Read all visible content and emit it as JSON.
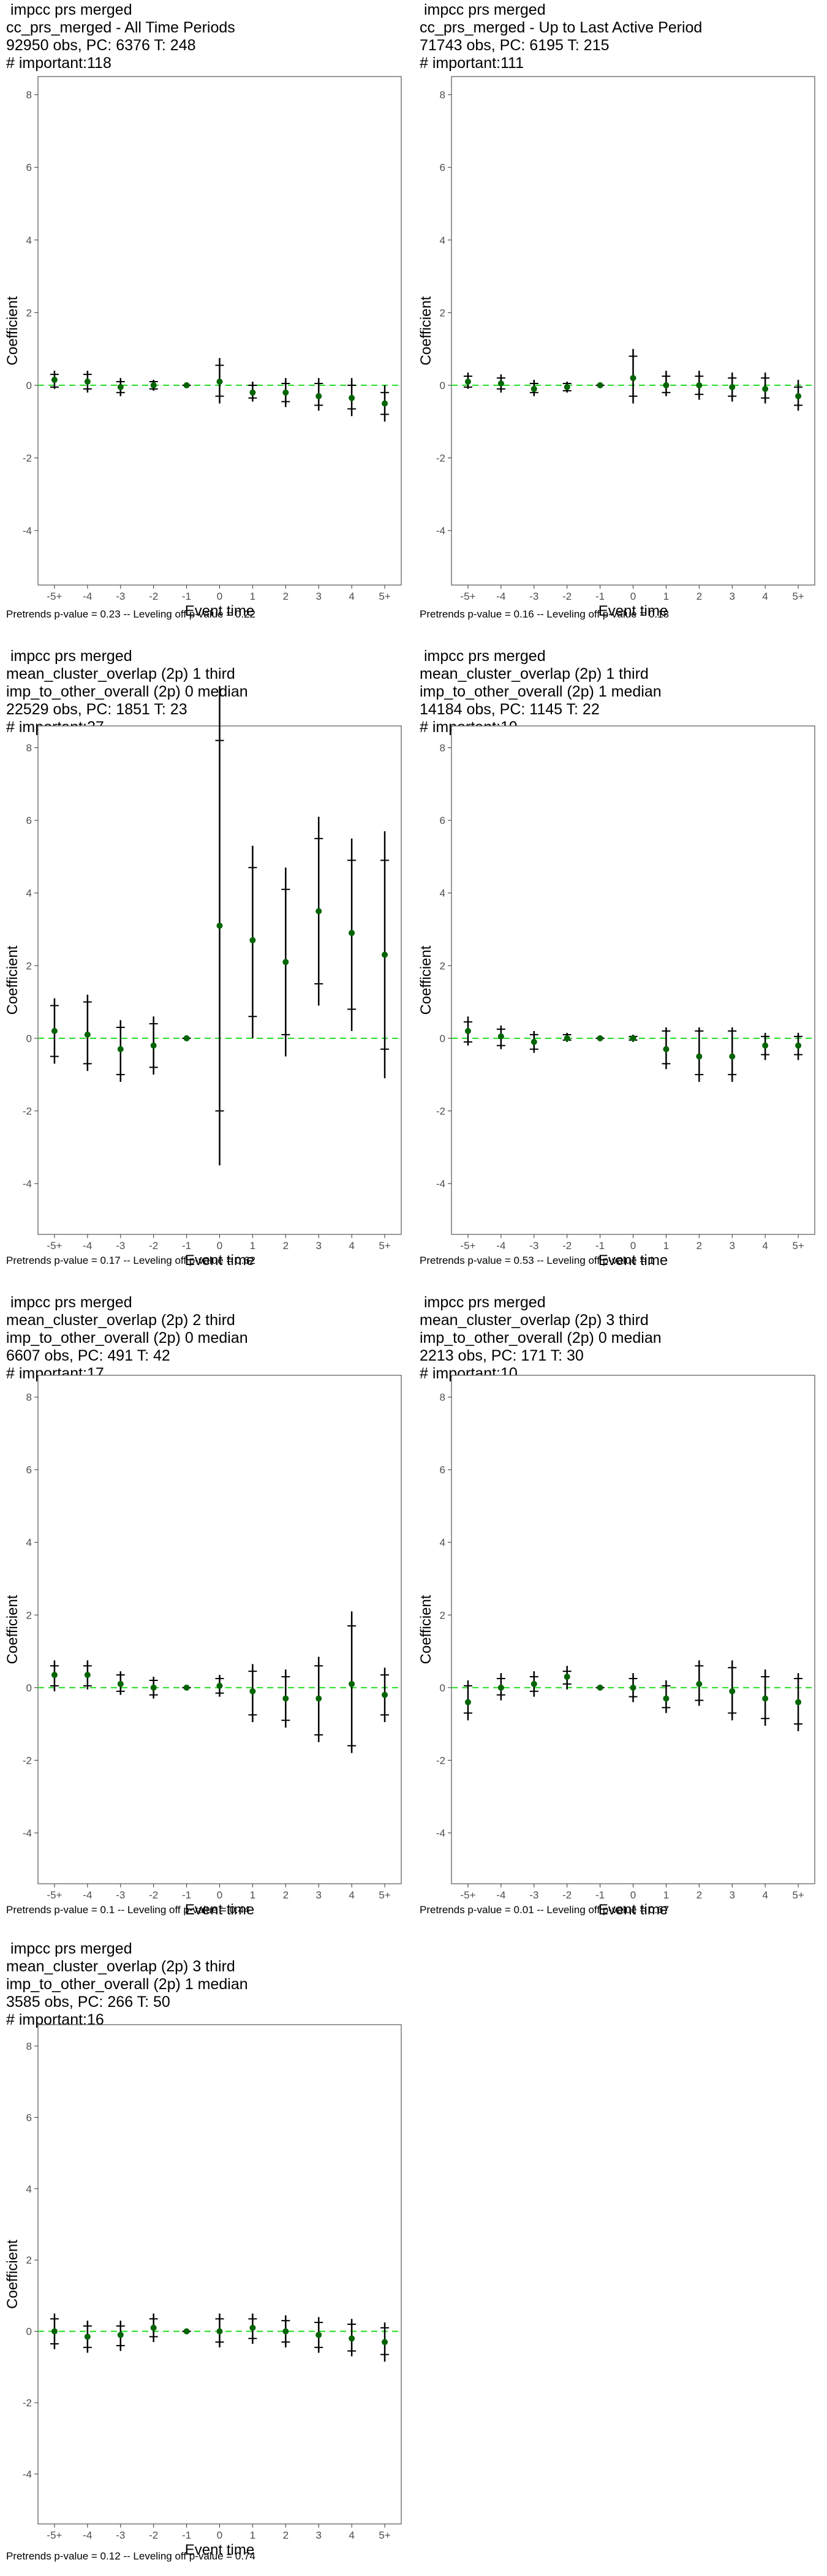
{
  "chart_data": [
    {
      "type": "scatter",
      "title_lines": [
        " impcc prs merged",
        "cc_prs_merged - All Time Periods",
        "92950 obs, PC: 6376 T: 248",
        "# important:118"
      ],
      "xlabel": "Event time",
      "ylabel": "Coefficient",
      "categories": [
        "-5+",
        "-4",
        "-3",
        "-2",
        "-1",
        "0",
        "1",
        "2",
        "3",
        "4",
        "5+"
      ],
      "ylim": [
        -5.5,
        8.5
      ],
      "yticks": [
        -4,
        -2,
        0,
        2,
        4,
        6,
        8
      ],
      "grid": false,
      "reference_line": 0,
      "points": [
        0.15,
        0.1,
        -0.05,
        0.0,
        0.0,
        0.1,
        -0.2,
        -0.2,
        -0.3,
        -0.35,
        -0.5
      ],
      "ci_inner": [
        [
          -0.05,
          0.3
        ],
        [
          -0.1,
          0.3
        ],
        [
          -0.2,
          0.1
        ],
        [
          -0.1,
          0.1
        ],
        [
          0,
          0
        ],
        [
          -0.3,
          0.55
        ],
        [
          -0.35,
          0.0
        ],
        [
          -0.45,
          0.05
        ],
        [
          -0.55,
          0.05
        ],
        [
          -0.65,
          0.0
        ],
        [
          -0.8,
          -0.2
        ]
      ],
      "ci_outer": [
        [
          -0.1,
          0.4
        ],
        [
          -0.2,
          0.4
        ],
        [
          -0.3,
          0.2
        ],
        [
          -0.15,
          0.15
        ],
        [
          0,
          0
        ],
        [
          -0.5,
          0.75
        ],
        [
          -0.45,
          0.1
        ],
        [
          -0.6,
          0.2
        ],
        [
          -0.7,
          0.2
        ],
        [
          -0.85,
          0.2
        ],
        [
          -1.0,
          0.0
        ]
      ],
      "footer": "Pretrends p-value = 0.23 -- Leveling off p-value = 0.22"
    },
    {
      "type": "scatter",
      "title_lines": [
        " impcc prs merged",
        "cc_prs_merged - Up to Last Active Period",
        "71743 obs, PC: 6195 T: 215",
        "# important:111"
      ],
      "xlabel": "Event time",
      "ylabel": "Coefficient",
      "categories": [
        "-5+",
        "-4",
        "-3",
        "-2",
        "-1",
        "0",
        "1",
        "2",
        "3",
        "4",
        "5+"
      ],
      "ylim": [
        -5.5,
        8.5
      ],
      "yticks": [
        -4,
        -2,
        0,
        2,
        4,
        6,
        8
      ],
      "grid": false,
      "reference_line": 0,
      "points": [
        0.1,
        0.05,
        -0.1,
        -0.05,
        0.0,
        0.2,
        0.0,
        0.0,
        -0.05,
        -0.1,
        -0.3
      ],
      "ci_inner": [
        [
          -0.05,
          0.25
        ],
        [
          -0.1,
          0.2
        ],
        [
          -0.2,
          0.05
        ],
        [
          -0.15,
          0.05
        ],
        [
          0,
          0
        ],
        [
          -0.3,
          0.8
        ],
        [
          -0.2,
          0.25
        ],
        [
          -0.25,
          0.25
        ],
        [
          -0.3,
          0.2
        ],
        [
          -0.35,
          0.2
        ],
        [
          -0.55,
          -0.05
        ]
      ],
      "ci_outer": [
        [
          -0.1,
          0.35
        ],
        [
          -0.2,
          0.3
        ],
        [
          -0.3,
          0.15
        ],
        [
          -0.2,
          0.1
        ],
        [
          0,
          0
        ],
        [
          -0.5,
          1.0
        ],
        [
          -0.3,
          0.4
        ],
        [
          -0.4,
          0.4
        ],
        [
          -0.45,
          0.35
        ],
        [
          -0.5,
          0.35
        ],
        [
          -0.7,
          0.15
        ]
      ],
      "footer": "Pretrends p-value = 0.16 -- Leveling off p-value = 0.18"
    },
    {
      "type": "scatter",
      "title_lines": [
        " impcc prs merged",
        "mean_cluster_overlap (2p) 1 third",
        "imp_to_other_overall (2p) 0 median",
        "22529 obs, PC: 1851 T: 23",
        "# important:27"
      ],
      "xlabel": "Event time",
      "ylabel": "Coefficient",
      "categories": [
        "-5+",
        "-4",
        "-3",
        "-2",
        "-1",
        "0",
        "1",
        "2",
        "3",
        "4",
        "5+"
      ],
      "ylim": [
        -5.4,
        8.6
      ],
      "yticks": [
        -4,
        -2,
        0,
        2,
        4,
        6,
        8
      ],
      "grid": false,
      "reference_line": 0,
      "points": [
        0.2,
        0.1,
        -0.3,
        -0.2,
        0.0,
        3.1,
        2.7,
        2.1,
        3.5,
        2.9,
        2.3
      ],
      "ci_inner": [
        [
          -0.5,
          0.9
        ],
        [
          -0.7,
          1.0
        ],
        [
          -1.0,
          0.3
        ],
        [
          -0.8,
          0.4
        ],
        [
          0,
          0
        ],
        [
          -2.0,
          8.2
        ],
        [
          0.6,
          4.7
        ],
        [
          0.1,
          4.1
        ],
        [
          1.5,
          5.5
        ],
        [
          0.8,
          4.9
        ],
        [
          -0.3,
          4.9
        ]
      ],
      "ci_outer": [
        [
          -0.7,
          1.1
        ],
        [
          -0.9,
          1.2
        ],
        [
          -1.2,
          0.5
        ],
        [
          -1.0,
          0.6
        ],
        [
          0,
          0
        ],
        [
          -3.5,
          9.7
        ],
        [
          0.0,
          5.3
        ],
        [
          -0.5,
          4.7
        ],
        [
          0.9,
          6.1
        ],
        [
          0.2,
          5.5
        ],
        [
          -1.1,
          5.7
        ]
      ],
      "footer": "Pretrends p-value = 0.17 -- Leveling off p-value = 0.62"
    },
    {
      "type": "scatter",
      "title_lines": [
        " impcc prs merged",
        "mean_cluster_overlap (2p) 1 third",
        "imp_to_other_overall (2p) 1 median",
        "14184 obs, PC: 1145 T: 22",
        "# important:19"
      ],
      "xlabel": "Event time",
      "ylabel": "Coefficient",
      "categories": [
        "-5+",
        "-4",
        "-3",
        "-2",
        "-1",
        "0",
        "1",
        "2",
        "3",
        "4",
        "5+"
      ],
      "ylim": [
        -5.4,
        8.6
      ],
      "yticks": [
        -4,
        -2,
        0,
        2,
        4,
        6,
        8
      ],
      "grid": false,
      "reference_line": 0,
      "points": [
        0.2,
        0.05,
        -0.1,
        0.0,
        0.0,
        0.0,
        -0.3,
        -0.5,
        -0.5,
        -0.2,
        -0.2
      ],
      "ci_inner": [
        [
          -0.1,
          0.45
        ],
        [
          -0.2,
          0.25
        ],
        [
          -0.3,
          0.1
        ],
        [
          -0.05,
          0.1
        ],
        [
          0,
          0
        ],
        [
          -0.05,
          0.05
        ],
        [
          -0.7,
          0.2
        ],
        [
          -1.0,
          0.2
        ],
        [
          -1.0,
          0.2
        ],
        [
          -0.45,
          0.05
        ],
        [
          -0.45,
          0.05
        ]
      ],
      "ci_outer": [
        [
          -0.2,
          0.6
        ],
        [
          -0.3,
          0.35
        ],
        [
          -0.4,
          0.2
        ],
        [
          -0.1,
          0.15
        ],
        [
          0,
          0
        ],
        [
          -0.1,
          0.1
        ],
        [
          -0.85,
          0.3
        ],
        [
          -1.2,
          0.3
        ],
        [
          -1.2,
          0.3
        ],
        [
          -0.6,
          0.15
        ],
        [
          -0.6,
          0.15
        ]
      ],
      "footer": "Pretrends p-value = 0.53 -- Leveling off p-value = 1"
    },
    {
      "type": "scatter",
      "title_lines": [
        " impcc prs merged",
        "mean_cluster_overlap (2p) 2 third",
        "imp_to_other_overall (2p) 0 median",
        "6607 obs, PC: 491 T: 42",
        "# important:17"
      ],
      "xlabel": "Event time",
      "ylabel": "Coefficient",
      "categories": [
        "-5+",
        "-4",
        "-3",
        "-2",
        "-1",
        "0",
        "1",
        "2",
        "3",
        "4",
        "5+"
      ],
      "ylim": [
        -5.4,
        8.6
      ],
      "yticks": [
        -4,
        -2,
        0,
        2,
        4,
        6,
        8
      ],
      "grid": false,
      "reference_line": 0,
      "points": [
        0.35,
        0.35,
        0.1,
        0.0,
        0.0,
        0.05,
        -0.1,
        -0.3,
        -0.3,
        0.1,
        -0.2
      ],
      "ci_inner": [
        [
          0.05,
          0.6
        ],
        [
          0.05,
          0.6
        ],
        [
          -0.1,
          0.35
        ],
        [
          -0.2,
          0.2
        ],
        [
          0,
          0
        ],
        [
          -0.15,
          0.25
        ],
        [
          -0.75,
          0.45
        ],
        [
          -0.9,
          0.3
        ],
        [
          -1.3,
          0.6
        ],
        [
          -1.6,
          1.7
        ],
        [
          -0.75,
          0.35
        ]
      ],
      "ci_outer": [
        [
          -0.1,
          0.75
        ],
        [
          -0.05,
          0.75
        ],
        [
          -0.2,
          0.45
        ],
        [
          -0.3,
          0.3
        ],
        [
          0,
          0
        ],
        [
          -0.25,
          0.35
        ],
        [
          -0.95,
          0.65
        ],
        [
          -1.1,
          0.5
        ],
        [
          -1.5,
          0.85
        ],
        [
          -1.8,
          2.1
        ],
        [
          -0.95,
          0.55
        ]
      ],
      "footer": "Pretrends p-value = 0.1 -- Leveling off p-value = 0.44"
    },
    {
      "type": "scatter",
      "title_lines": [
        " impcc prs merged",
        "mean_cluster_overlap (2p) 3 third",
        "imp_to_other_overall (2p) 0 median",
        "2213 obs, PC: 171 T: 30",
        "# important:10"
      ],
      "xlabel": "Event time",
      "ylabel": "Coefficient",
      "categories": [
        "-5+",
        "-4",
        "-3",
        "-2",
        "-1",
        "0",
        "1",
        "2",
        "3",
        "4",
        "5+"
      ],
      "ylim": [
        -5.4,
        8.6
      ],
      "yticks": [
        -4,
        -2,
        0,
        2,
        4,
        6,
        8
      ],
      "grid": false,
      "reference_line": 0,
      "points": [
        -0.4,
        0.0,
        0.1,
        0.3,
        0.0,
        0.0,
        -0.3,
        0.1,
        -0.1,
        -0.3,
        -0.4
      ],
      "ci_inner": [
        [
          -0.7,
          0.05
        ],
        [
          -0.2,
          0.25
        ],
        [
          -0.1,
          0.3
        ],
        [
          0.1,
          0.45
        ],
        [
          0,
          0
        ],
        [
          -0.25,
          0.25
        ],
        [
          -0.55,
          0.05
        ],
        [
          -0.35,
          0.6
        ],
        [
          -0.7,
          0.55
        ],
        [
          -0.85,
          0.3
        ],
        [
          -1.0,
          0.25
        ]
      ],
      "ci_outer": [
        [
          -0.9,
          0.2
        ],
        [
          -0.35,
          0.4
        ],
        [
          -0.25,
          0.45
        ],
        [
          -0.05,
          0.6
        ],
        [
          0,
          0
        ],
        [
          -0.4,
          0.4
        ],
        [
          -0.7,
          0.2
        ],
        [
          -0.5,
          0.75
        ],
        [
          -0.9,
          0.75
        ],
        [
          -1.05,
          0.5
        ],
        [
          -1.2,
          0.4
        ]
      ],
      "footer": "Pretrends p-value = 0.01 -- Leveling off p-value = 0.67"
    },
    {
      "type": "scatter",
      "title_lines": [
        " impcc prs merged",
        "mean_cluster_overlap (2p) 3 third",
        "imp_to_other_overall (2p) 1 median",
        "3585 obs, PC: 266 T: 50",
        "# important:16"
      ],
      "xlabel": "Event time",
      "ylabel": "Coefficient",
      "categories": [
        "-5+",
        "-4",
        "-3",
        "-2",
        "-1",
        "0",
        "1",
        "2",
        "3",
        "4",
        "5+"
      ],
      "ylim": [
        -5.4,
        8.6
      ],
      "yticks": [
        -4,
        -2,
        0,
        2,
        4,
        6,
        8
      ],
      "grid": false,
      "reference_line": 0,
      "points": [
        0.0,
        -0.15,
        -0.1,
        0.1,
        0.0,
        0.0,
        0.1,
        0.0,
        -0.1,
        -0.2,
        -0.3
      ],
      "ci_inner": [
        [
          -0.35,
          0.35
        ],
        [
          -0.45,
          0.15
        ],
        [
          -0.4,
          0.15
        ],
        [
          -0.15,
          0.35
        ],
        [
          0,
          0
        ],
        [
          -0.3,
          0.35
        ],
        [
          -0.2,
          0.35
        ],
        [
          -0.3,
          0.3
        ],
        [
          -0.45,
          0.25
        ],
        [
          -0.55,
          0.2
        ],
        [
          -0.65,
          0.1
        ]
      ],
      "ci_outer": [
        [
          -0.5,
          0.5
        ],
        [
          -0.6,
          0.3
        ],
        [
          -0.55,
          0.3
        ],
        [
          -0.3,
          0.5
        ],
        [
          0,
          0
        ],
        [
          -0.45,
          0.5
        ],
        [
          -0.35,
          0.5
        ],
        [
          -0.45,
          0.45
        ],
        [
          -0.6,
          0.4
        ],
        [
          -0.7,
          0.35
        ],
        [
          -0.85,
          0.25
        ]
      ],
      "footer": "Pretrends p-value = 0.12 -- Leveling off p-value = 0.74"
    }
  ],
  "colors": {
    "point": "#006400",
    "reference_line": "#22dd22",
    "errorbar": "#000000",
    "frame": "#555555"
  }
}
